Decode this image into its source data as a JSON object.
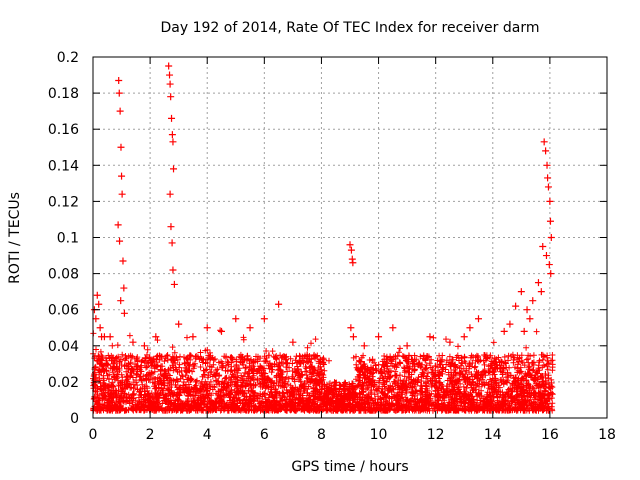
{
  "chart_data": {
    "type": "scatter",
    "title": "Day 192 of 2014, Rate Of TEC Index for receiver darm",
    "xlabel": "GPS time / hours",
    "ylabel": "ROTI / TECUs",
    "xlim": [
      0,
      18
    ],
    "ylim": [
      0,
      0.2
    ],
    "xticks": [
      "0",
      "2",
      "4",
      "6",
      "8",
      "10",
      "12",
      "14",
      "16",
      "18"
    ],
    "yticks": [
      "0",
      "0.02",
      "0.04",
      "0.06",
      "0.08",
      "0.1",
      "0.12",
      "0.14",
      "0.16",
      "0.18",
      "0.2"
    ],
    "grid": true,
    "marker": "plus",
    "series": [
      {
        "name": "ROTI",
        "color": "#ff0000",
        "x": [
          0.05,
          0.1,
          0.15,
          0.2,
          0.25,
          0.3,
          0.9,
          0.92,
          0.95,
          0.98,
          1.0,
          1.02,
          0.88,
          0.93,
          1.05,
          1.08,
          1.1,
          0.97,
          2.65,
          2.68,
          2.7,
          2.72,
          2.75,
          2.78,
          2.8,
          2.82,
          2.7,
          2.73,
          2.77,
          2.8,
          2.85,
          9.0,
          9.05,
          9.08,
          9.1,
          9.03,
          9.12,
          15.8,
          15.85,
          15.9,
          15.92,
          15.95,
          16.0,
          16.02,
          16.05,
          15.75,
          15.88,
          15.98,
          16.03,
          15.7,
          15.6,
          15.4,
          15.3,
          15.2,
          15.1,
          15.0,
          14.8,
          14.6,
          14.4,
          13.5,
          13.2,
          13.0,
          12.5,
          11.8,
          11.0,
          10.5,
          10.0,
          9.5,
          7.5,
          7.0,
          6.5,
          6.0,
          5.5,
          5.0,
          4.5,
          4.0,
          3.5,
          3.0,
          2.2,
          1.8,
          1.4,
          0.6,
          0.4
        ],
        "y": [
          0.06,
          0.055,
          0.068,
          0.063,
          0.05,
          0.045,
          0.187,
          0.18,
          0.17,
          0.15,
          0.134,
          0.124,
          0.107,
          0.098,
          0.087,
          0.072,
          0.058,
          0.065,
          0.195,
          0.19,
          0.185,
          0.178,
          0.166,
          0.157,
          0.153,
          0.138,
          0.124,
          0.106,
          0.097,
          0.082,
          0.074,
          0.096,
          0.093,
          0.088,
          0.086,
          0.05,
          0.045,
          0.153,
          0.148,
          0.14,
          0.133,
          0.128,
          0.12,
          0.109,
          0.1,
          0.095,
          0.09,
          0.085,
          0.08,
          0.07,
          0.075,
          0.065,
          0.055,
          0.06,
          0.048,
          0.07,
          0.062,
          0.052,
          0.048,
          0.055,
          0.05,
          0.045,
          0.042,
          0.045,
          0.04,
          0.05,
          0.045,
          0.04,
          0.035,
          0.042,
          0.063,
          0.055,
          0.05,
          0.055,
          0.048,
          0.05,
          0.045,
          0.052,
          0.045,
          0.04,
          0.042,
          0.045,
          0.045
        ]
      }
    ],
    "dense_band": {
      "x_range": [
        0,
        16.1
      ],
      "y_floor": 0.004,
      "y_typical_max": 0.035,
      "dip_x_range": [
        8.1,
        9.2
      ],
      "dip_max": 0.02
    }
  }
}
